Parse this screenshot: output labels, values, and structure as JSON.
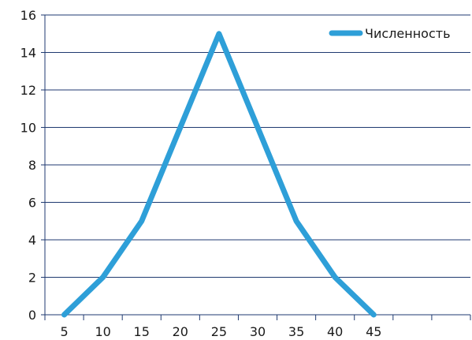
{
  "chart_data": {
    "type": "line",
    "title": "",
    "xlabel": "",
    "ylabel": "",
    "x": [
      5,
      10,
      15,
      20,
      25,
      30,
      35,
      40,
      45
    ],
    "x_tick_labels": [
      "5",
      "10",
      "15",
      "20",
      "25",
      "30",
      "35",
      "40",
      "45"
    ],
    "x_extra_ticks": 2,
    "ylim": [
      0,
      16
    ],
    "y_ticks": [
      0,
      2,
      4,
      6,
      8,
      10,
      12,
      14,
      16
    ],
    "grid": "horizontal",
    "legend_position": "top-right",
    "series": [
      {
        "name": "Численность",
        "values": [
          0,
          2,
          5,
          10,
          15,
          10,
          5,
          2,
          0
        ],
        "color": "#2e9fd8"
      }
    ],
    "gridline_color": "#1f3a70",
    "axis_color": "#1f3a70"
  }
}
